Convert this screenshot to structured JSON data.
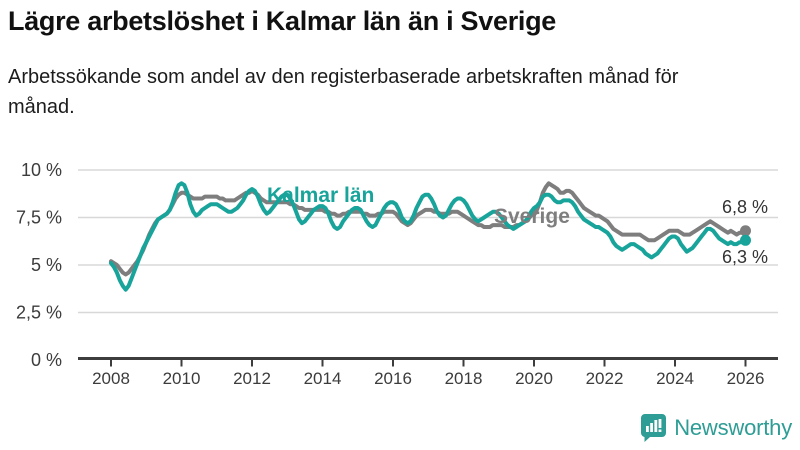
{
  "header": {
    "title": "Lägre arbetslöshet i Kalmar län än i Sverige",
    "subtitle": "Arbetssökande som andel av den registerbaserade arbetskraften månad för månad."
  },
  "chart_data": {
    "type": "line",
    "title": "Lägre arbetslöshet i Kalmar län än i Sverige",
    "xlabel": "",
    "ylabel": "",
    "frequency": "monthly",
    "x_start": "2008-01",
    "x_end": "2026-01",
    "ylim": [
      0,
      10
    ],
    "grid": "horizontal",
    "x_ticks": [
      2008,
      2010,
      2012,
      2014,
      2016,
      2018,
      2020,
      2022,
      2024,
      2026
    ],
    "y_ticks": [
      {
        "value": 0,
        "label": "0 %"
      },
      {
        "value": 2.5,
        "label": "2,5 %"
      },
      {
        "value": 5,
        "label": "5 %"
      },
      {
        "value": 7.5,
        "label": "7,5 %"
      },
      {
        "value": 10,
        "label": "10 %"
      }
    ],
    "series": [
      {
        "name": "Kalmar län",
        "color": "#18a49b",
        "end_label": "6,3 %",
        "end_value": 6.3,
        "values": [
          5.1,
          4.9,
          4.6,
          4.2,
          3.9,
          3.7,
          3.9,
          4.3,
          4.7,
          5.1,
          5.5,
          5.9,
          6.2,
          6.5,
          6.8,
          7.1,
          7.4,
          7.5,
          7.6,
          7.7,
          7.9,
          8.3,
          8.8,
          9.2,
          9.3,
          9.2,
          8.8,
          8.2,
          7.8,
          7.6,
          7.7,
          7.9,
          8.0,
          8.1,
          8.2,
          8.2,
          8.2,
          8.1,
          8.0,
          7.9,
          7.8,
          7.8,
          7.9,
          8.0,
          8.2,
          8.4,
          8.7,
          8.9,
          9.0,
          8.9,
          8.6,
          8.2,
          7.9,
          7.7,
          7.8,
          8.0,
          8.2,
          8.4,
          8.6,
          8.7,
          8.7,
          8.5,
          8.2,
          7.8,
          7.4,
          7.2,
          7.3,
          7.5,
          7.7,
          7.9,
          8.0,
          8.1,
          8.1,
          8.0,
          7.7,
          7.3,
          7.0,
          6.9,
          7.0,
          7.3,
          7.5,
          7.7,
          7.9,
          8.0,
          8.0,
          7.9,
          7.6,
          7.3,
          7.1,
          7.0,
          7.1,
          7.4,
          7.7,
          8.0,
          8.2,
          8.3,
          8.3,
          8.2,
          7.9,
          7.5,
          7.3,
          7.2,
          7.3,
          7.6,
          8.0,
          8.3,
          8.6,
          8.7,
          8.7,
          8.5,
          8.2,
          7.8,
          7.6,
          7.5,
          7.6,
          7.9,
          8.2,
          8.4,
          8.5,
          8.5,
          8.4,
          8.2,
          7.9,
          7.6,
          7.4,
          7.3,
          7.4,
          7.5,
          7.6,
          7.7,
          7.8,
          7.8,
          7.7,
          7.5,
          7.3,
          7.1,
          7.0,
          6.9,
          7.0,
          7.1,
          7.2,
          7.3,
          7.5,
          7.8,
          8.0,
          8.1,
          8.3,
          8.6,
          8.7,
          8.7,
          8.6,
          8.4,
          8.3,
          8.3,
          8.4,
          8.4,
          8.4,
          8.3,
          8.1,
          7.8,
          7.6,
          7.4,
          7.3,
          7.2,
          7.1,
          7.0,
          7.0,
          6.9,
          6.8,
          6.7,
          6.5,
          6.2,
          6.0,
          5.9,
          5.8,
          5.9,
          6.0,
          6.1,
          6.1,
          6.0,
          5.9,
          5.8,
          5.6,
          5.5,
          5.4,
          5.5,
          5.6,
          5.8,
          6.0,
          6.2,
          6.4,
          6.5,
          6.5,
          6.4,
          6.1,
          5.9,
          5.7,
          5.8,
          5.9,
          6.1,
          6.3,
          6.5,
          6.7,
          6.9,
          6.9,
          6.8,
          6.6,
          6.4,
          6.3,
          6.2,
          6.1,
          6.2,
          6.1,
          6.1,
          6.2,
          6.2,
          6.3
        ]
      },
      {
        "name": "Sverige",
        "color": "#7e7e7e",
        "end_label": "6,8 %",
        "end_value": 6.8,
        "values": [
          5.2,
          5.1,
          5.0,
          4.8,
          4.6,
          4.5,
          4.6,
          4.8,
          5.0,
          5.2,
          5.5,
          5.8,
          6.2,
          6.6,
          6.9,
          7.2,
          7.4,
          7.5,
          7.6,
          7.7,
          7.9,
          8.2,
          8.5,
          8.7,
          8.8,
          8.8,
          8.7,
          8.6,
          8.5,
          8.5,
          8.5,
          8.5,
          8.6,
          8.6,
          8.6,
          8.6,
          8.6,
          8.5,
          8.5,
          8.4,
          8.4,
          8.4,
          8.4,
          8.5,
          8.6,
          8.7,
          8.8,
          8.8,
          8.9,
          8.8,
          8.7,
          8.5,
          8.4,
          8.3,
          8.3,
          8.3,
          8.3,
          8.3,
          8.3,
          8.3,
          8.3,
          8.2,
          8.2,
          8.1,
          8.0,
          8.0,
          7.9,
          7.9,
          7.9,
          7.9,
          7.9,
          7.9,
          7.9,
          7.8,
          7.8,
          7.7,
          7.7,
          7.6,
          7.6,
          7.7,
          7.7,
          7.8,
          7.8,
          7.8,
          7.8,
          7.8,
          7.7,
          7.7,
          7.6,
          7.6,
          7.6,
          7.7,
          7.7,
          7.8,
          7.8,
          7.8,
          7.8,
          7.7,
          7.5,
          7.3,
          7.2,
          7.1,
          7.2,
          7.4,
          7.6,
          7.7,
          7.8,
          7.9,
          7.9,
          7.9,
          7.8,
          7.8,
          7.7,
          7.7,
          7.7,
          7.7,
          7.8,
          7.8,
          7.8,
          7.7,
          7.6,
          7.5,
          7.4,
          7.3,
          7.2,
          7.1,
          7.1,
          7.0,
          7.0,
          7.0,
          7.1,
          7.1,
          7.1,
          7.1,
          7.0,
          7.0,
          7.0,
          7.0,
          7.1,
          7.1,
          7.2,
          7.3,
          7.4,
          7.6,
          7.7,
          7.9,
          8.3,
          8.8,
          9.1,
          9.3,
          9.2,
          9.1,
          9.0,
          8.8,
          8.8,
          8.9,
          8.9,
          8.8,
          8.6,
          8.4,
          8.2,
          8.0,
          7.9,
          7.8,
          7.7,
          7.6,
          7.6,
          7.5,
          7.4,
          7.3,
          7.1,
          6.9,
          6.8,
          6.7,
          6.6,
          6.6,
          6.6,
          6.6,
          6.6,
          6.6,
          6.6,
          6.5,
          6.4,
          6.3,
          6.3,
          6.3,
          6.4,
          6.5,
          6.6,
          6.7,
          6.8,
          6.8,
          6.8,
          6.8,
          6.7,
          6.6,
          6.6,
          6.6,
          6.7,
          6.8,
          6.9,
          7.0,
          7.1,
          7.2,
          7.3,
          7.2,
          7.1,
          7.0,
          6.9,
          6.8,
          6.7,
          6.8,
          6.7,
          6.6,
          6.7,
          6.7,
          6.8
        ]
      }
    ]
  },
  "annotations": {
    "kalmar_series_label": "Kalmar län",
    "sverige_series_label": "Sverige",
    "sverige_end_value": "6,8 %",
    "kalmar_end_value": "6,3 %"
  },
  "footer": {
    "brand": "Newsworthy"
  },
  "colors": {
    "kalmar": "#18a49b",
    "sverige": "#7e7e7e",
    "gridline": "#d8d8d8",
    "axis": "#3d3d3d",
    "tick_text": "#3c3c3c",
    "brand_teal": "#2d9d95"
  }
}
